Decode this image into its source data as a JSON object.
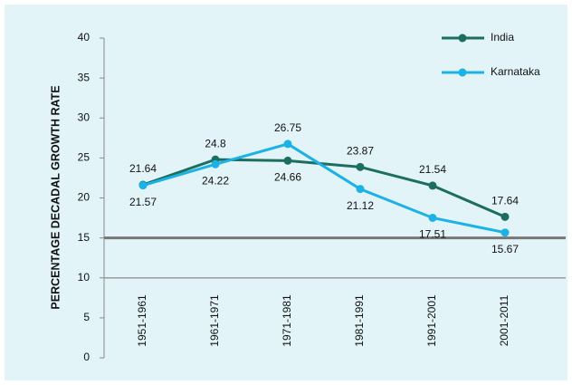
{
  "chart_data": {
    "type": "line",
    "y_label": "PERCENTAGE DECADAL GROWTH RATE",
    "categories": [
      "1951-1961",
      "1961-1971",
      "1971-1981",
      "1981-1991",
      "1991-2001",
      "2001-2011"
    ],
    "series": [
      {
        "name": "India",
        "color": "#1b6e60",
        "values": [
          21.64,
          24.8,
          24.66,
          23.87,
          21.54,
          17.64
        ]
      },
      {
        "name": "Karnataka",
        "color": "#1cb2e6",
        "values": [
          21.57,
          24.22,
          26.75,
          21.12,
          17.51,
          15.67
        ]
      }
    ],
    "ylim": [
      0,
      40
    ],
    "yticks": [
      0,
      5,
      10,
      15,
      20,
      25,
      30,
      35,
      40
    ],
    "hlines": [
      {
        "value": 10,
        "color": "#9a9a9a"
      },
      {
        "value": 15,
        "color": "#777777"
      }
    ],
    "legend": "upper right"
  }
}
